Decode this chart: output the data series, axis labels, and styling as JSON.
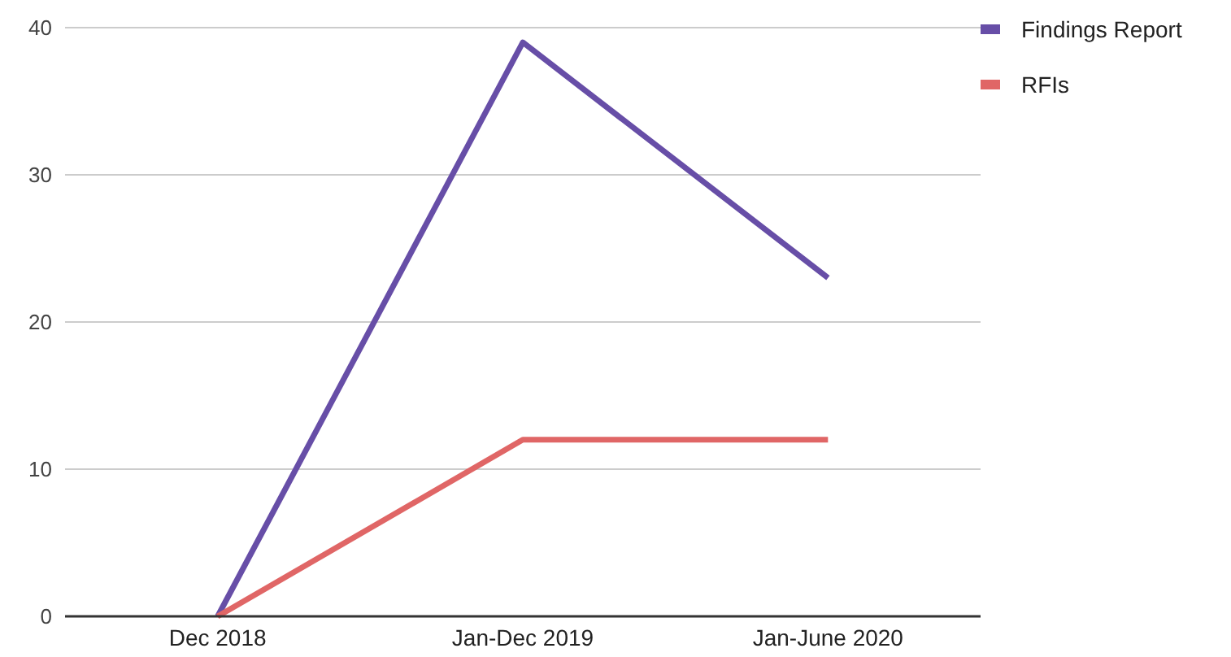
{
  "chart_data": {
    "type": "line",
    "categories": [
      "Dec 2018",
      "Jan-Dec 2019",
      "Jan-June 2020"
    ],
    "series": [
      {
        "name": "Findings Report",
        "color": "#674ea7",
        "values": [
          0,
          39,
          23
        ]
      },
      {
        "name": "RFIs",
        "color": "#e06666",
        "values": [
          0,
          12,
          12
        ]
      }
    ],
    "ylim": [
      0,
      40
    ],
    "yticks": [
      0,
      10,
      20,
      30,
      40
    ],
    "grid": "y",
    "legend": "top right",
    "marker": "none",
    "line_style": "solid"
  }
}
